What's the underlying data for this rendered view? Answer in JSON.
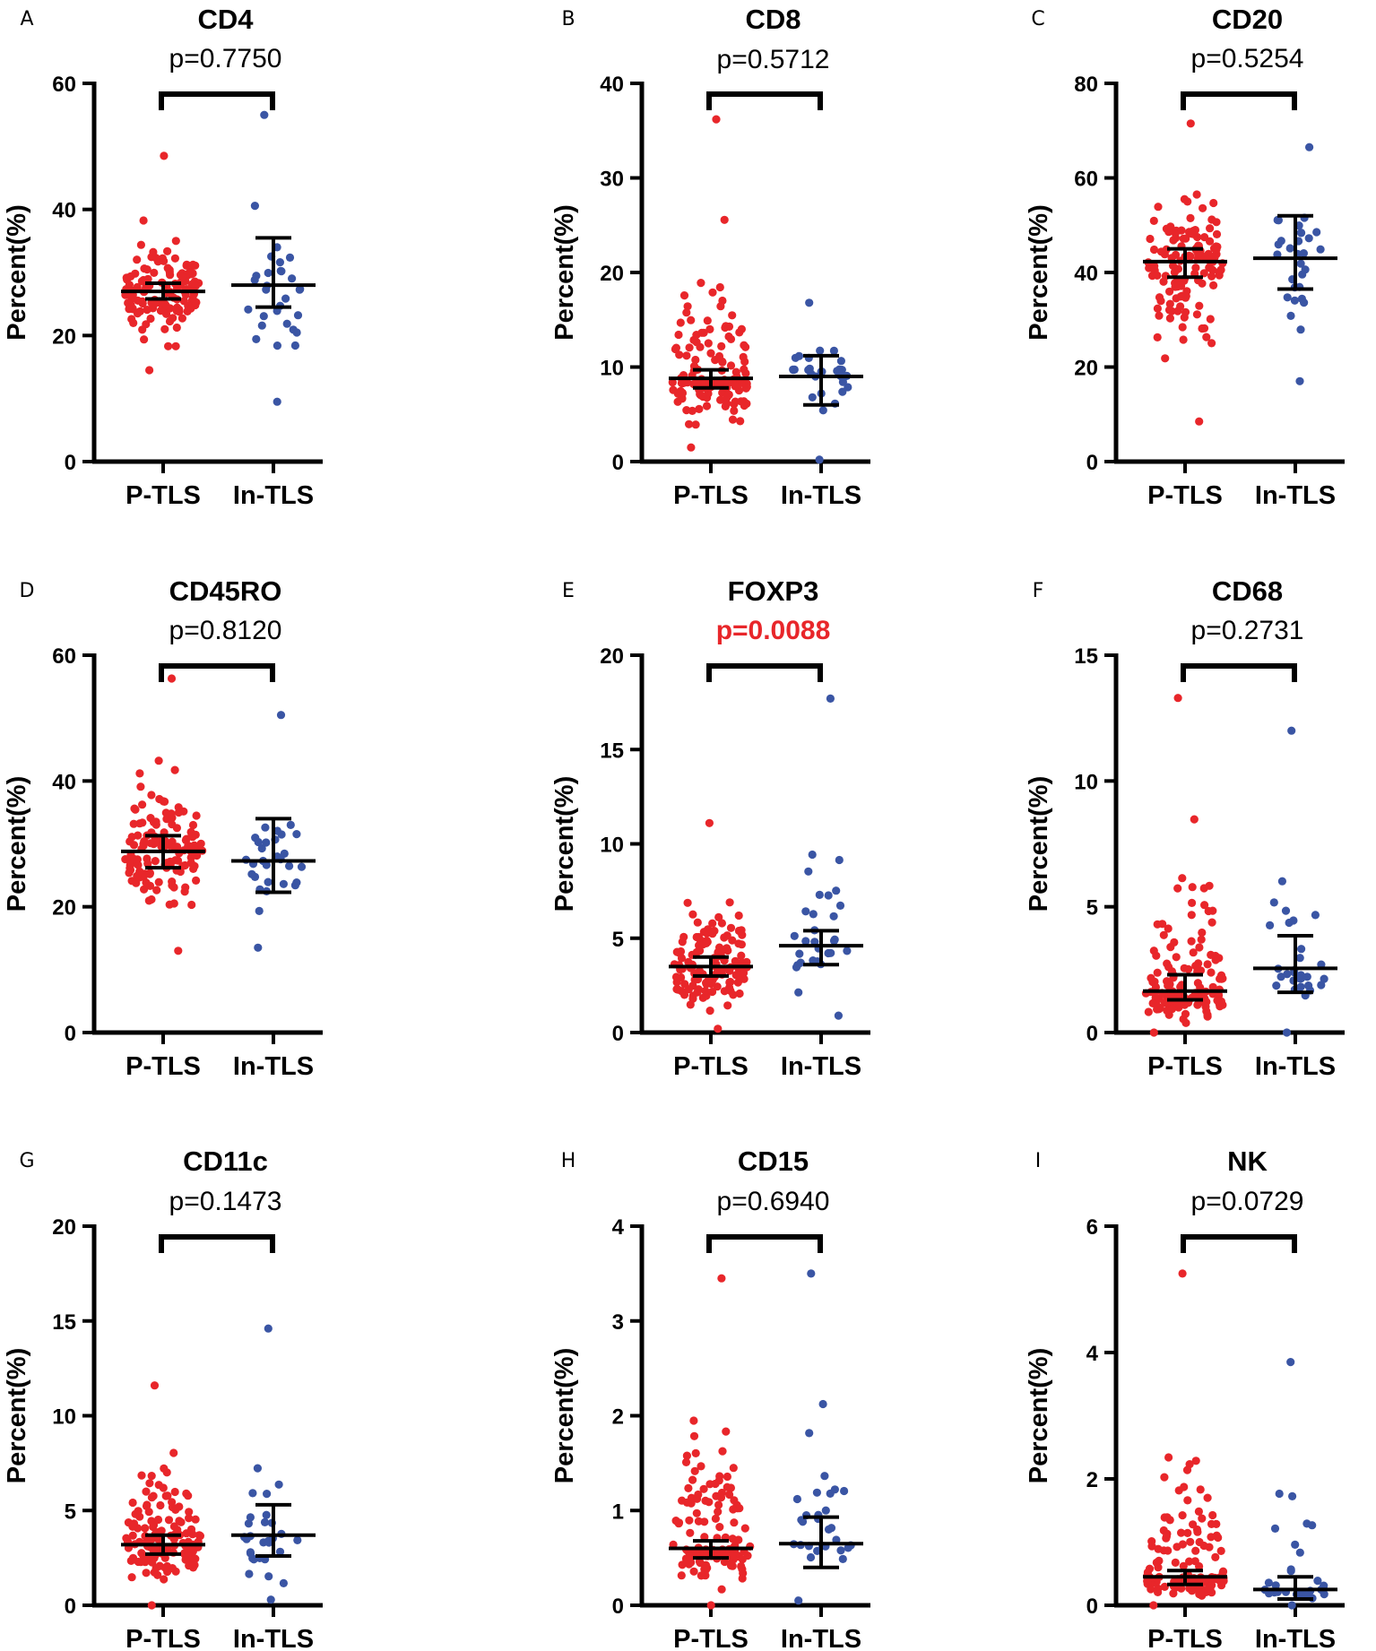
{
  "figure": {
    "groups": [
      "P-TLS",
      "In-TLS"
    ],
    "ylabel": "Percent(%)",
    "colors": {
      "P-TLS": "#e8262a",
      "In-TLS": "#3a55a4",
      "significant_p": "#e8262a"
    }
  },
  "chart_data": [
    {
      "panel": "A",
      "type": "scatter",
      "title": "CD4",
      "p_value": "p=0.7750",
      "significant": false,
      "ylabel": "Percent(%)",
      "ylim": [
        0,
        60
      ],
      "yticks": [
        0,
        20,
        40,
        60
      ],
      "categories": [
        "P-TLS",
        "In-TLS"
      ],
      "series": [
        {
          "name": "P-TLS",
          "n": 130,
          "range": [
            14.5,
            48.5
          ],
          "median": 27.0,
          "ci": [
            25.8,
            28.3
          ]
        },
        {
          "name": "In-TLS",
          "n": 30,
          "range": [
            9.5,
            55.0
          ],
          "median": 28.0,
          "ci": [
            24.5,
            35.5
          ]
        }
      ]
    },
    {
      "panel": "B",
      "type": "scatter",
      "title": "CD8",
      "p_value": "p=0.5712",
      "significant": false,
      "ylabel": "Percent(%)",
      "ylim": [
        0,
        40
      ],
      "yticks": [
        0,
        10,
        20,
        30,
        40
      ],
      "categories": [
        "P-TLS",
        "In-TLS"
      ],
      "series": [
        {
          "name": "P-TLS",
          "n": 130,
          "range": [
            1.5,
            36.2
          ],
          "median": 8.8,
          "ci": [
            7.8,
            9.7
          ]
        },
        {
          "name": "In-TLS",
          "n": 30,
          "range": [
            0.2,
            16.8
          ],
          "median": 9.0,
          "ci": [
            6.0,
            11.2
          ]
        }
      ]
    },
    {
      "panel": "C",
      "type": "scatter",
      "title": "CD20",
      "p_value": "p=0.5254",
      "significant": false,
      "ylabel": "Percent(%)",
      "ylim": [
        0,
        80
      ],
      "yticks": [
        0,
        20,
        40,
        60,
        80
      ],
      "categories": [
        "P-TLS",
        "In-TLS"
      ],
      "series": [
        {
          "name": "P-TLS",
          "n": 130,
          "range": [
            8.5,
            71.5
          ],
          "median": 42.3,
          "ci": [
            39.0,
            45.0
          ]
        },
        {
          "name": "In-TLS",
          "n": 30,
          "range": [
            17.0,
            66.5
          ],
          "median": 43.0,
          "ci": [
            36.5,
            52.0
          ]
        }
      ]
    },
    {
      "panel": "D",
      "type": "scatter",
      "title": "CD45RO",
      "p_value": "p=0.8120",
      "significant": false,
      "ylabel": "Percent(%)",
      "ylim": [
        0,
        60
      ],
      "yticks": [
        0,
        20,
        40,
        60
      ],
      "categories": [
        "P-TLS",
        "In-TLS"
      ],
      "series": [
        {
          "name": "P-TLS",
          "n": 130,
          "range": [
            13.0,
            56.3
          ],
          "median": 28.8,
          "ci": [
            26.2,
            31.3
          ]
        },
        {
          "name": "In-TLS",
          "n": 30,
          "range": [
            13.5,
            50.5
          ],
          "median": 27.3,
          "ci": [
            22.3,
            34.0
          ]
        }
      ]
    },
    {
      "panel": "E",
      "type": "scatter",
      "title": "FOXP3",
      "p_value": "p=0.0088",
      "significant": true,
      "ylabel": "Percent(%)",
      "ylim": [
        0,
        20
      ],
      "yticks": [
        0,
        5,
        10,
        15,
        20
      ],
      "categories": [
        "P-TLS",
        "In-TLS"
      ],
      "series": [
        {
          "name": "P-TLS",
          "n": 130,
          "range": [
            0.2,
            11.1
          ],
          "median": 3.5,
          "ci": [
            3.0,
            4.0
          ]
        },
        {
          "name": "In-TLS",
          "n": 30,
          "range": [
            0.9,
            17.7
          ],
          "median": 4.6,
          "ci": [
            3.6,
            5.4
          ]
        }
      ]
    },
    {
      "panel": "F",
      "type": "scatter",
      "title": "CD68",
      "p_value": "p=0.2731",
      "significant": false,
      "ylabel": "Percent(%)",
      "ylim": [
        0,
        15
      ],
      "yticks": [
        0,
        5,
        10,
        15
      ],
      "categories": [
        "P-TLS",
        "In-TLS"
      ],
      "series": [
        {
          "name": "P-TLS",
          "n": 130,
          "range": [
            0.0,
            13.3
          ],
          "median": 1.65,
          "ci": [
            1.3,
            2.3
          ]
        },
        {
          "name": "In-TLS",
          "n": 30,
          "range": [
            0.0,
            12.0
          ],
          "median": 2.55,
          "ci": [
            1.6,
            3.85
          ]
        }
      ]
    },
    {
      "panel": "G",
      "type": "scatter",
      "title": "CD11c",
      "p_value": "p=0.1473",
      "significant": false,
      "ylabel": "Percent(%)",
      "ylim": [
        0,
        20
      ],
      "yticks": [
        0,
        5,
        10,
        15,
        20
      ],
      "categories": [
        "P-TLS",
        "In-TLS"
      ],
      "series": [
        {
          "name": "P-TLS",
          "n": 130,
          "range": [
            0.0,
            11.6
          ],
          "median": 3.2,
          "ci": [
            2.7,
            3.7
          ]
        },
        {
          "name": "In-TLS",
          "n": 30,
          "range": [
            0.3,
            14.6
          ],
          "median": 3.7,
          "ci": [
            2.6,
            5.3
          ]
        }
      ]
    },
    {
      "panel": "H",
      "type": "scatter",
      "title": "CD15",
      "p_value": "p=0.6940",
      "significant": false,
      "ylabel": "Percent(%)",
      "ylim": [
        0,
        4
      ],
      "yticks": [
        0,
        1,
        2,
        3,
        4
      ],
      "categories": [
        "P-TLS",
        "In-TLS"
      ],
      "series": [
        {
          "name": "P-TLS",
          "n": 130,
          "range": [
            0.0,
            3.45
          ],
          "median": 0.6,
          "ci": [
            0.5,
            0.68
          ]
        },
        {
          "name": "In-TLS",
          "n": 30,
          "range": [
            0.05,
            3.5
          ],
          "median": 0.65,
          "ci": [
            0.4,
            0.93
          ]
        }
      ]
    },
    {
      "panel": "I",
      "type": "scatter",
      "title": "NK",
      "p_value": "p=0.0729",
      "significant": false,
      "ylabel": "Percent(%)",
      "ylim": [
        0,
        6
      ],
      "yticks": [
        0,
        2,
        4,
        6
      ],
      "categories": [
        "P-TLS",
        "In-TLS"
      ],
      "series": [
        {
          "name": "P-TLS",
          "n": 130,
          "range": [
            0.0,
            5.25
          ],
          "median": 0.45,
          "ci": [
            0.33,
            0.55
          ]
        },
        {
          "name": "In-TLS",
          "n": 30,
          "range": [
            0.0,
            3.85
          ],
          "median": 0.25,
          "ci": [
            0.1,
            0.45
          ]
        }
      ]
    }
  ]
}
